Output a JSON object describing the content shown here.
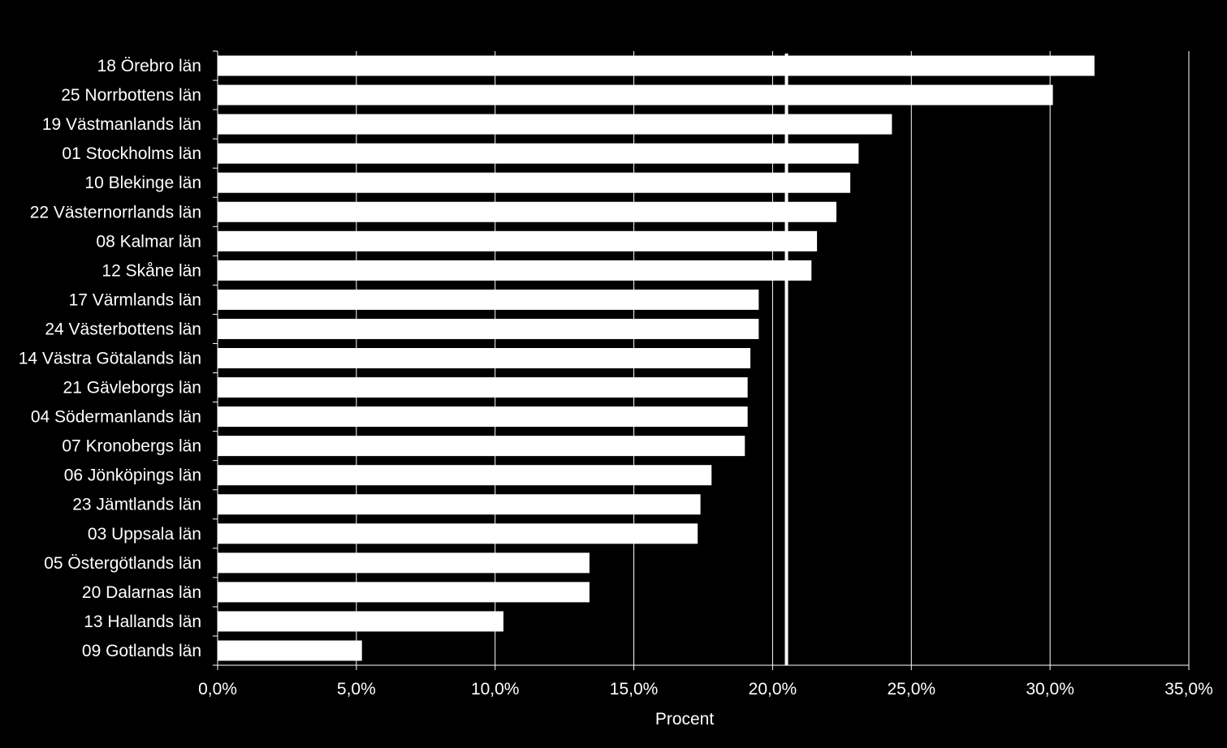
{
  "chart_data": {
    "type": "bar",
    "orientation": "horizontal",
    "categories": [
      "18 Örebro län",
      "25 Norrbottens län",
      "19 Västmanlands län",
      "01 Stockholms län",
      "10 Blekinge län",
      "22 Västernorrlands län",
      "08 Kalmar län",
      "12 Skåne län",
      "17 Värmlands län",
      "24 Västerbottens län",
      "14 Västra Götalands län",
      "21 Gävleborgs län",
      "04 Södermanlands län",
      "07 Kronobergs län",
      "06 Jönköpings län",
      "23 Jämtlands län",
      "03 Uppsala län",
      "05 Östergötlands län",
      "20 Dalarnas län",
      "13 Hallands län",
      "09 Gotlands län"
    ],
    "values": [
      31.6,
      30.1,
      24.3,
      23.1,
      22.8,
      22.3,
      21.6,
      21.4,
      19.5,
      19.5,
      19.2,
      19.1,
      19.1,
      19.0,
      17.8,
      17.4,
      17.3,
      13.4,
      13.4,
      10.3,
      5.2
    ],
    "xlabel": "Procent",
    "xlim": [
      0,
      35
    ],
    "xticks": [
      "0,0%",
      "5,0%",
      "10,0%",
      "15,0%",
      "20,0%",
      "25,0%",
      "30,0%",
      "35,0%"
    ],
    "reference_line": 20.5,
    "grid": true,
    "colors": {
      "background": "#000000",
      "bar": "#ffffff",
      "grid": "#ffffff",
      "text": "#ffffff"
    }
  }
}
